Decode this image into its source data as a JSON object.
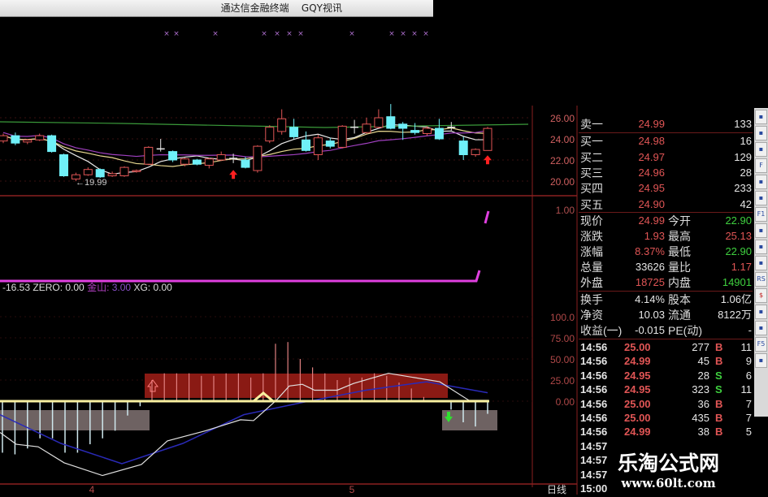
{
  "window": {
    "title": "通达信金融终端",
    "subtitle": "GQY视讯"
  },
  "colors": {
    "up": "#e05555",
    "down": "#6ff0f8",
    "ma5": "#e8e8e8",
    "ma10": "#e8d890",
    "ma30": "#a040c0",
    "ma60": "#3a9a3a",
    "axis": "#8a2020",
    "indicator_pink": "#e040e0",
    "zero_line": "#f8f0a0",
    "white_line": "#e0e0e0",
    "blue_line": "#2a2ab8",
    "red_zone": "#8a1a14",
    "gray_zone": "#6e6262"
  },
  "price_axis": {
    "ticks": [
      "26.00",
      "24.00",
      "22.00",
      "20.00"
    ],
    "values": [
      26,
      24,
      22,
      20
    ]
  },
  "low_label": "←19.99",
  "mid_axis": {
    "tick": "1.00"
  },
  "indicator_readout": {
    "value": "-16.53",
    "zero": "ZERO: 0.00",
    "jinshan_label": "金山:",
    "jinshan_value": "3.00",
    "xg": "XG: 0.00"
  },
  "osc_axis": {
    "ticks": [
      "100.0",
      "75.00",
      "50.00",
      "25.00",
      "0.00"
    ],
    "values": [
      100,
      75,
      50,
      25,
      0
    ]
  },
  "time_axis": {
    "labels": [
      "4",
      "5"
    ],
    "period": "日线"
  },
  "candles": [
    [
      23.8,
      24.3,
      24.5,
      23.6
    ],
    [
      24.3,
      23.6,
      24.6,
      23.4
    ],
    [
      23.7,
      23.9,
      24.0,
      23.5
    ],
    [
      23.9,
      24.3,
      24.5,
      23.8
    ],
    [
      24.3,
      22.8,
      24.4,
      22.7
    ],
    [
      22.5,
      20.5,
      22.6,
      20.4
    ],
    [
      20.2,
      20.6,
      20.8,
      19.99
    ],
    [
      20.6,
      21.1,
      21.3,
      20.5
    ],
    [
      21.1,
      20.4,
      21.2,
      20.3
    ],
    [
      20.5,
      20.7,
      20.9,
      20.4
    ],
    [
      20.5,
      21.3,
      21.4,
      20.4
    ],
    [
      20.9,
      21.0,
      21.1,
      20.8
    ],
    [
      21.6,
      23.2,
      23.3,
      21.5
    ],
    [
      23.05,
      23.05,
      24.0,
      22.8
    ],
    [
      22.8,
      22.0,
      22.9,
      21.8
    ],
    [
      21.6,
      22.1,
      22.2,
      21.4
    ],
    [
      22.0,
      21.6,
      22.1,
      21.5
    ],
    [
      21.5,
      22.1,
      22.2,
      21.2
    ],
    [
      22.0,
      22.5,
      22.8,
      21.9
    ],
    [
      22.15,
      22.15,
      22.6,
      21.7
    ],
    [
      22.0,
      21.3,
      22.3,
      21.2
    ],
    [
      21.0,
      23.3,
      23.4,
      20.8
    ],
    [
      23.8,
      25.1,
      25.3,
      23.6
    ],
    [
      24.7,
      25.9,
      26.8,
      24.4
    ],
    [
      25.1,
      24.2,
      25.9,
      24.0
    ],
    [
      23.9,
      22.9,
      24.7,
      22.8
    ],
    [
      22.5,
      24.1,
      24.4,
      22.0
    ],
    [
      23.8,
      23.3,
      24.1,
      23.1
    ],
    [
      23.2,
      25.2,
      25.3,
      23.1
    ],
    [
      25.1,
      25.1,
      25.8,
      24.5
    ],
    [
      24.6,
      25.4,
      26.0,
      24.5
    ],
    [
      25.1,
      26.0,
      26.8,
      25.0
    ],
    [
      26.1,
      25.0,
      27.3,
      24.9
    ],
    [
      25.4,
      25.0,
      25.6,
      23.9
    ],
    [
      24.8,
      24.6,
      25.5,
      24.4
    ],
    [
      24.5,
      25.0,
      25.2,
      24.3
    ],
    [
      25.0,
      24.0,
      25.9,
      23.9
    ],
    [
      25.1,
      25.1,
      25.6,
      24.8
    ],
    [
      23.8,
      22.5,
      24.2,
      22.0
    ],
    [
      22.5,
      23.0,
      23.1,
      22.3
    ],
    [
      22.9,
      24.99,
      25.13,
      22.9
    ]
  ],
  "osc_white": [
    -37,
    -51,
    -54,
    -73,
    -88,
    -75,
    -47,
    -35,
    -22,
    -23,
    1,
    18,
    20,
    13,
    13,
    21,
    33,
    23,
    1,
    1
  ],
  "osc_blue": [
    -16,
    -50,
    -74,
    -50,
    -16,
    -1,
    13,
    23,
    10
  ],
  "osc_bars": {
    "negative": [
      -61,
      -63,
      -56,
      -44,
      -44,
      -61,
      -61,
      -51,
      -44,
      -35,
      -17,
      -6
    ],
    "positive": [
      25,
      33,
      33,
      33,
      30,
      30,
      33,
      33,
      28,
      33,
      68,
      70,
      50,
      40,
      33,
      25,
      28,
      28,
      33,
      30,
      22,
      15,
      5
    ],
    "tail": [
      -10,
      -25,
      -30,
      -15
    ]
  },
  "quote": {
    "ask": [
      {
        "label": "卖一",
        "price": "24.99",
        "vol": "133"
      }
    ],
    "bids": [
      {
        "label": "买一",
        "price": "24.98",
        "vol": "16"
      },
      {
        "label": "买二",
        "price": "24.97",
        "vol": "129"
      },
      {
        "label": "买三",
        "price": "24.96",
        "vol": "28"
      },
      {
        "label": "买四",
        "price": "24.95",
        "vol": "233"
      },
      {
        "label": "买五",
        "price": "24.90",
        "vol": "42"
      }
    ],
    "stats": [
      {
        "l1": "现价",
        "v1": "24.99",
        "c1": "red",
        "l2": "今开",
        "v2": "22.90",
        "c2": "grn"
      },
      {
        "l1": "涨跌",
        "v1": "1.93",
        "c1": "red",
        "l2": "最高",
        "v2": "25.13",
        "c2": "red"
      },
      {
        "l1": "涨幅",
        "v1": "8.37%",
        "c1": "red",
        "l2": "最低",
        "v2": "22.90",
        "c2": "grn"
      },
      {
        "l1": "总量",
        "v1": "33626",
        "c1": "wht",
        "l2": "量比",
        "v2": "1.17",
        "c2": "red"
      },
      {
        "l1": "外盘",
        "v1": "18725",
        "c1": "red",
        "l2": "内盘",
        "v2": "14901",
        "c2": "grn"
      }
    ],
    "fund": [
      {
        "l1": "换手",
        "v1": "4.14%",
        "l2": "股本",
        "v2": "1.06亿"
      },
      {
        "l1": "净资",
        "v1": "10.03",
        "l2": "流通",
        "v2": "8122万"
      },
      {
        "l1": "收益(一)",
        "v1": "-0.015",
        "l2": "PE(动)",
        "v2": "-"
      }
    ],
    "trades": [
      {
        "time": "14:56",
        "price": "25.00",
        "vol": "277",
        "bs": "B",
        "n": "11"
      },
      {
        "time": "14:56",
        "price": "24.99",
        "vol": "45",
        "bs": "B",
        "n": "9"
      },
      {
        "time": "14:56",
        "price": "24.95",
        "vol": "28",
        "bs": "S",
        "n": "6"
      },
      {
        "time": "14:56",
        "price": "24.95",
        "vol": "323",
        "bs": "S",
        "n": "11"
      },
      {
        "time": "14:56",
        "price": "25.00",
        "vol": "36",
        "bs": "B",
        "n": "7"
      },
      {
        "time": "14:56",
        "price": "25.00",
        "vol": "435",
        "bs": "B",
        "n": "7"
      },
      {
        "time": "14:56",
        "price": "24.99",
        "vol": "38",
        "bs": "B",
        "n": "5"
      },
      {
        "time": "14:57"
      },
      {
        "time": "14:57"
      },
      {
        "time": "14:57"
      },
      {
        "time": "15:00"
      }
    ]
  },
  "toolbar": [
    "chart-icon",
    "candle-icon",
    "grid-icon",
    "f-icon",
    "note-icon",
    "folder-icon",
    "f10-icon",
    "formula-icon",
    "search-icon",
    "wave-icon",
    "rsi-icon",
    "money-icon",
    "move-icon",
    "pen-icon",
    "f5-icon",
    "switch-icon"
  ],
  "toolbar_labels": {
    "rsi-icon": "RS",
    "f-icon": "F",
    "f10-icon": "F1",
    "f5-icon": "F5",
    "money-icon": "$"
  },
  "watermark": {
    "name": "乐淘公式网",
    "url": "www.60lt.com"
  }
}
